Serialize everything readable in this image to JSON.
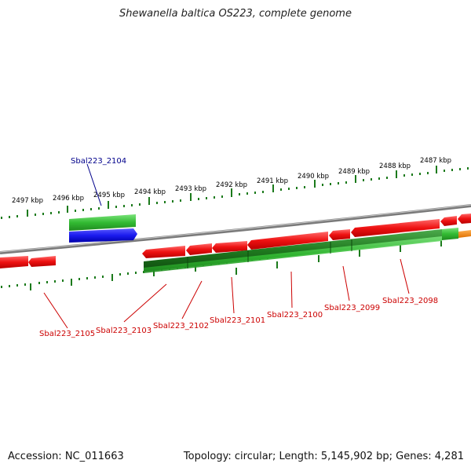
{
  "title": "Shewanella baltica OS223, complete genome",
  "footer": {
    "accession": "Accession: NC_011663",
    "summary": "Topology: circular; Length: 5,145,902 bp; Genes: 4,281"
  },
  "colors": {
    "backbone": "#8c8c8c",
    "ticks": "#1b7a1b",
    "gene_red": "#ee1111",
    "gene_green": "#33bb33",
    "gene_darkgreen": "#1f7a1f",
    "gene_blue": "#1a1aee",
    "gene_orange": "#ff8800",
    "label_red": "#cc0000",
    "label_blue": "#00008b"
  },
  "ticks": [
    "2497 kbp",
    "2496 kbp",
    "2495 kbp",
    "2494 kbp",
    "2493 kbp",
    "2492 kbp",
    "2491 kbp",
    "2490 kbp",
    "2489 kbp",
    "2488 kbp",
    "2487 kbp"
  ],
  "gene_labels": [
    {
      "text": "Sbal223_2104",
      "color": "blue"
    },
    {
      "text": "Sbal223_2105",
      "color": "red"
    },
    {
      "text": "Sbal223_2103",
      "color": "red"
    },
    {
      "text": "Sbal223_2102",
      "color": "red"
    },
    {
      "text": "Sbal223_2101",
      "color": "red"
    },
    {
      "text": "Sbal223_2100",
      "color": "red"
    },
    {
      "text": "Sbal223_2099",
      "color": "red"
    },
    {
      "text": "Sbal223_2098",
      "color": "red"
    }
  ]
}
